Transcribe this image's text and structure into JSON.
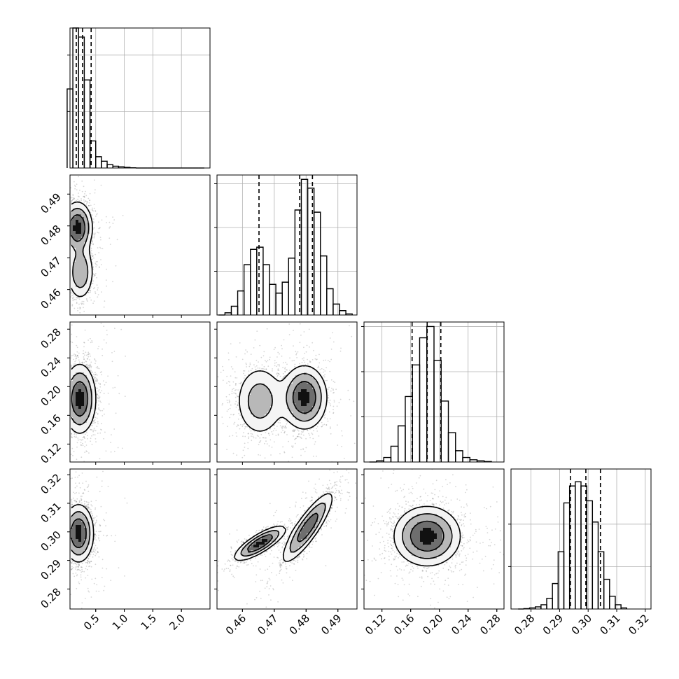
{
  "chart_data": {
    "type": "corner",
    "grid": true,
    "parameters": [
      {
        "range": [
          0.05,
          2.5
        ],
        "ticks": [
          0.5,
          1.0,
          1.5,
          2.0
        ],
        "tick_labels": [
          "0.5",
          "1.0",
          "1.5",
          "2.0"
        ],
        "quantiles": [
          0.16,
          0.27,
          0.42
        ],
        "hist": [
          [
            0.05,
            0.35
          ],
          [
            0.15,
            0.62
          ],
          [
            0.25,
            0.58
          ],
          [
            0.35,
            0.39
          ],
          [
            0.45,
            0.12
          ],
          [
            0.55,
            0.05
          ],
          [
            0.65,
            0.03
          ],
          [
            0.75,
            0.015
          ],
          [
            0.85,
            0.008
          ],
          [
            0.95,
            0.005
          ],
          [
            1.05,
            0.003
          ],
          [
            1.15,
            0.001
          ],
          [
            1.25,
            0
          ],
          [
            1.35,
            0
          ],
          [
            1.45,
            0
          ],
          [
            1.55,
            0
          ],
          [
            1.65,
            0
          ],
          [
            1.75,
            0
          ],
          [
            1.85,
            0
          ],
          [
            1.95,
            0
          ],
          [
            2.05,
            0
          ],
          [
            2.15,
            0
          ],
          [
            2.25,
            0
          ],
          [
            2.35,
            0
          ]
        ],
        "hist_ylim": [
          0,
          0.62
        ],
        "hist_yticks": [
          0.25,
          0.5
        ]
      },
      {
        "range": [
          0.452,
          0.496
        ],
        "ticks": [
          0.46,
          0.47,
          0.48,
          0.49
        ],
        "tick_labels": [
          "0.46",
          "0.47",
          "0.48",
          "0.49"
        ],
        "quantiles": [
          0.4652,
          0.478,
          0.482
        ],
        "hist": [
          [
            0.4535,
            0
          ],
          [
            0.4555,
            0.01
          ],
          [
            0.4575,
            0.04
          ],
          [
            0.4595,
            0.11
          ],
          [
            0.4615,
            0.23
          ],
          [
            0.4635,
            0.3
          ],
          [
            0.4655,
            0.31
          ],
          [
            0.4675,
            0.23
          ],
          [
            0.4695,
            0.14
          ],
          [
            0.4715,
            0.1
          ],
          [
            0.4735,
            0.15
          ],
          [
            0.4755,
            0.26
          ],
          [
            0.4775,
            0.48
          ],
          [
            0.4795,
            0.62
          ],
          [
            0.4815,
            0.58
          ],
          [
            0.4835,
            0.47
          ],
          [
            0.4855,
            0.27
          ],
          [
            0.4875,
            0.12
          ],
          [
            0.4895,
            0.05
          ],
          [
            0.4915,
            0.02
          ],
          [
            0.4935,
            0.005
          ]
        ],
        "hist_ylim": [
          0,
          0.64
        ],
        "hist_yticks": [
          0.2,
          0.4,
          0.6
        ]
      },
      {
        "range": [
          0.095,
          0.29
        ],
        "ticks": [
          0.12,
          0.16,
          0.2,
          0.24,
          0.28
        ],
        "tick_labels": [
          "0.12",
          "0.16",
          "0.20",
          "0.24",
          "0.28"
        ],
        "quantiles": [
          0.162,
          0.183,
          0.202
        ],
        "hist": [
          [
            0.1075,
            0
          ],
          [
            0.1175,
            0.005
          ],
          [
            0.1275,
            0.02
          ],
          [
            0.1375,
            0.07
          ],
          [
            0.1475,
            0.16
          ],
          [
            0.1575,
            0.29
          ],
          [
            0.1675,
            0.43
          ],
          [
            0.1775,
            0.55
          ],
          [
            0.1875,
            0.6
          ],
          [
            0.1975,
            0.45
          ],
          [
            0.2075,
            0.27
          ],
          [
            0.2175,
            0.13
          ],
          [
            0.2275,
            0.05
          ],
          [
            0.2375,
            0.02
          ],
          [
            0.2475,
            0.01
          ],
          [
            0.2575,
            0.005
          ],
          [
            0.2675,
            0.002
          ]
        ],
        "hist_ylim": [
          0,
          0.62
        ],
        "hist_yticks": [
          0.2,
          0.4,
          0.6
        ]
      },
      {
        "range": [
          0.273,
          0.322
        ],
        "ticks": [
          0.28,
          0.29,
          0.3,
          0.31,
          0.32
        ],
        "tick_labels": [
          "0.28",
          "0.29",
          "0.30",
          "0.31",
          "0.32"
        ],
        "quantiles": [
          0.2938,
          0.2992,
          0.3043
        ],
        "hist": [
          [
            0.2765,
            0
          ],
          [
            0.2785,
            0.002
          ],
          [
            0.2805,
            0.005
          ],
          [
            0.2825,
            0.01
          ],
          [
            0.2845,
            0.02
          ],
          [
            0.2865,
            0.05
          ],
          [
            0.2885,
            0.12
          ],
          [
            0.2905,
            0.27
          ],
          [
            0.2925,
            0.5
          ],
          [
            0.2945,
            0.58
          ],
          [
            0.2965,
            0.6
          ],
          [
            0.2985,
            0.58
          ],
          [
            0.3005,
            0.51
          ],
          [
            0.3025,
            0.41
          ],
          [
            0.3045,
            0.27
          ],
          [
            0.3065,
            0.14
          ],
          [
            0.3085,
            0.06
          ],
          [
            0.3105,
            0.02
          ],
          [
            0.3125,
            0.005
          ]
        ],
        "hist_ylim": [
          0,
          0.66
        ],
        "hist_yticks": [
          0.2,
          0.4
        ]
      }
    ],
    "pairs": [
      {
        "x": 0,
        "y": 1,
        "modes": [
          {
            "mx": 0.18,
            "my": 0.4795,
            "sx": 0.13,
            "sy": 0.004,
            "rho": 0,
            "w": 0.62
          },
          {
            "mx": 0.23,
            "my": 0.4655,
            "sx": 0.12,
            "sy": 0.0045,
            "rho": 0,
            "w": 0.38
          }
        ]
      },
      {
        "x": 0,
        "y": 2,
        "modes": [
          {
            "mx": 0.22,
            "my": 0.183,
            "sx": 0.14,
            "sy": 0.024,
            "rho": 0,
            "w": 1
          }
        ]
      },
      {
        "x": 1,
        "y": 2,
        "modes": [
          {
            "mx": 0.4795,
            "my": 0.185,
            "sx": 0.0035,
            "sy": 0.022,
            "rho": 0,
            "w": 0.6
          },
          {
            "mx": 0.4655,
            "my": 0.18,
            "sx": 0.004,
            "sy": 0.026,
            "rho": 0,
            "w": 0.4
          }
        ]
      },
      {
        "x": 0,
        "y": 3,
        "modes": [
          {
            "mx": 0.2,
            "my": 0.2995,
            "sx": 0.13,
            "sy": 0.005,
            "rho": 0,
            "w": 1
          }
        ]
      },
      {
        "x": 1,
        "y": 3,
        "modes": [
          {
            "mx": 0.4805,
            "my": 0.3015,
            "sx": 0.004,
            "sy": 0.0062,
            "rho": 0.86,
            "w": 0.6
          },
          {
            "mx": 0.4655,
            "my": 0.296,
            "sx": 0.004,
            "sy": 0.003,
            "rho": 0.8,
            "w": 0.4
          }
        ]
      },
      {
        "x": 2,
        "y": 3,
        "modes": [
          {
            "mx": 0.183,
            "my": 0.2985,
            "sx": 0.023,
            "sy": 0.0052,
            "rho": 0,
            "w": 1
          }
        ]
      }
    ],
    "contour_levels": [
      0.39,
      0.86,
      0.99
    ]
  }
}
